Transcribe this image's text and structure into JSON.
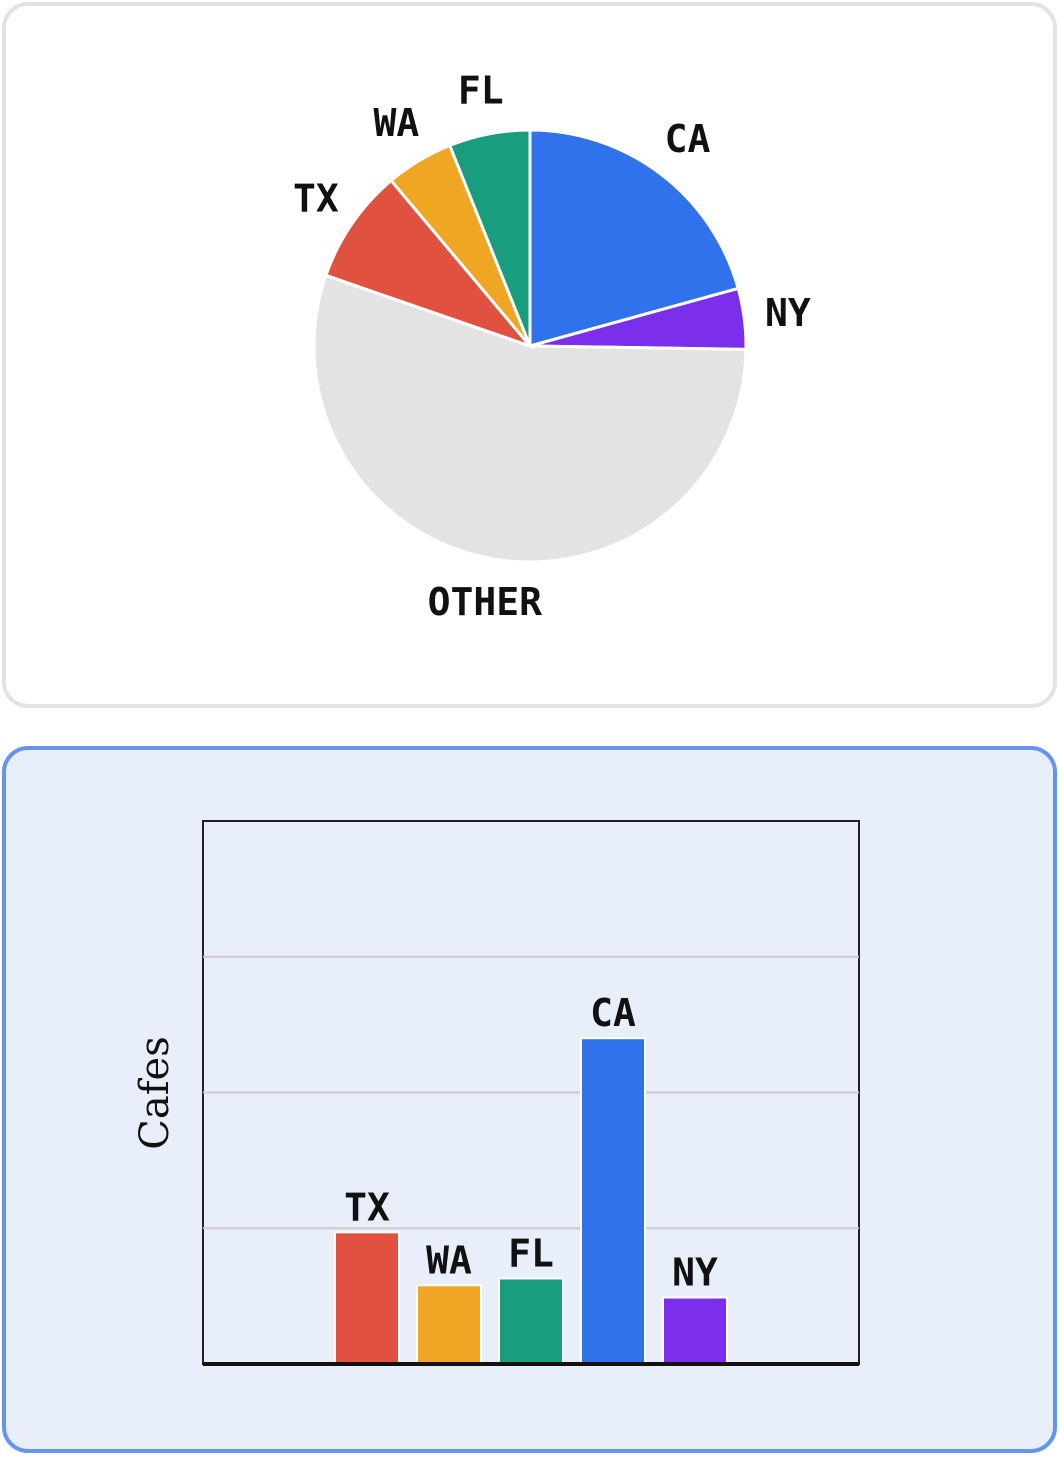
{
  "chart_data": [
    {
      "type": "pie",
      "slices": [
        {
          "label": "CA",
          "value": 20.5,
          "color": "#2f72ec"
        },
        {
          "label": "NY",
          "value": 4.5,
          "color": "#7b2fea"
        },
        {
          "label": "OTHER",
          "value": 54.5,
          "color": "#e3e3e3"
        },
        {
          "label": "TX",
          "value": 8.5,
          "color": "#e05140"
        },
        {
          "label": "WA",
          "value": 5,
          "color": "#eea623"
        },
        {
          "label": "FL",
          "value": 6,
          "color": "#189e7e"
        }
      ]
    },
    {
      "type": "bar",
      "categories": [
        "TX",
        "WA",
        "FL",
        "CA",
        "NY"
      ],
      "values": [
        9.7,
        5.8,
        6.3,
        24,
        4.9
      ],
      "colors": [
        "#e05140",
        "#eea623",
        "#189e7e",
        "#2f72ec",
        "#7b2fea"
      ],
      "ylabel": "Cafes",
      "ylim": [
        0,
        40
      ],
      "grid": true
    }
  ]
}
